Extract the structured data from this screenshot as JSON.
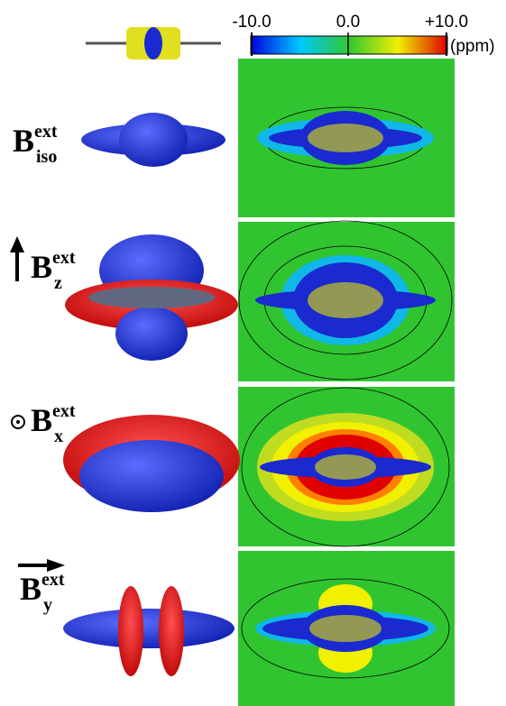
{
  "colorbar": {
    "ticks": [
      "-10.0",
      "0.0",
      "+10.0"
    ],
    "unit": "(ppm)"
  },
  "rows": [
    {
      "symbol": "B",
      "sub": "iso",
      "sup": "ext"
    },
    {
      "symbol": "B",
      "sub": "z",
      "sup": "ext"
    },
    {
      "symbol": "B",
      "sub": "x",
      "sup": "ext"
    },
    {
      "symbol": "B",
      "sub": "y",
      "sup": "ext"
    }
  ]
}
